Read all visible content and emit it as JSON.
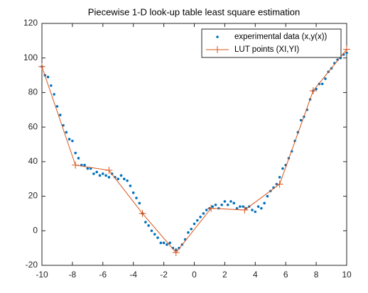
{
  "chart_data": {
    "type": "line",
    "title": "Piecewise 1-D look-up table least square estimation",
    "xlim": [
      -10,
      10
    ],
    "xticks": [
      -10,
      -8,
      -6,
      -4,
      -2,
      0,
      2,
      4,
      6,
      8,
      10
    ],
    "ylim": [
      -20,
      120
    ],
    "yticks": [
      -20,
      0,
      20,
      40,
      60,
      80,
      100,
      120
    ],
    "legend": "upper right",
    "series": [
      {
        "name": "experimental data (x,y(x))",
        "color": "#0072bd",
        "mode": "markers",
        "x": [
          -10,
          -9.8,
          -9.6,
          -9.4,
          -9.2,
          -9,
          -8.8,
          -8.6,
          -8.4,
          -8.2,
          -8,
          -7.8,
          -7.6,
          -7.4,
          -7.2,
          -7,
          -6.8,
          -6.6,
          -6.4,
          -6.2,
          -6,
          -5.8,
          -5.6,
          -5.4,
          -5.2,
          -5,
          -4.8,
          -4.6,
          -4.4,
          -4.2,
          -4,
          -3.8,
          -3.6,
          -3.4,
          -3.2,
          -3,
          -2.8,
          -2.6,
          -2.4,
          -2.2,
          -2,
          -1.8,
          -1.6,
          -1.4,
          -1.2,
          -1,
          -0.8,
          -0.6,
          -0.4,
          -0.2,
          0,
          0.2,
          0.4,
          0.6,
          0.8,
          1,
          1.2,
          1.4,
          1.6,
          1.8,
          2,
          2.2,
          2.4,
          2.6,
          2.8,
          3,
          3.2,
          3.4,
          3.6,
          3.8,
          4,
          4.2,
          4.4,
          4.6,
          4.8,
          5,
          5.2,
          5.4,
          5.6,
          5.8,
          6,
          6.2,
          6.4,
          6.6,
          6.8,
          7,
          7.2,
          7.4,
          7.6,
          7.8,
          8,
          8.2,
          8.4,
          8.6,
          8.8,
          9,
          9.2,
          9.4,
          9.6,
          9.8,
          10
        ],
        "values": [
          95,
          90,
          89,
          84,
          79,
          72,
          67,
          61,
          57,
          53,
          52,
          45,
          42,
          38,
          38,
          36,
          36,
          33,
          34,
          32,
          33,
          32,
          31,
          33,
          31,
          30,
          32,
          30,
          29,
          26,
          22,
          19,
          16,
          10,
          5,
          3,
          0,
          -2,
          -4,
          -7,
          -7,
          -8,
          -7,
          -10,
          -11,
          -10,
          -8,
          -5,
          -1,
          1,
          4,
          6,
          8,
          10,
          12,
          13,
          14,
          15,
          13,
          15,
          17,
          15,
          17,
          16,
          13,
          14,
          14,
          13,
          14,
          12,
          11,
          14,
          13,
          16,
          20,
          23,
          25,
          27,
          31,
          36,
          38,
          42,
          46,
          52,
          57,
          64,
          66,
          70,
          76,
          81,
          82,
          85,
          85,
          88,
          92,
          94,
          97,
          99,
          100,
          102,
          103
        ]
      },
      {
        "name": "LUT points (XI,YI)",
        "color": "#d95319",
        "mode": "lines+markers",
        "x": [
          -10,
          -7.8,
          -5.6,
          -3.4,
          -1.2,
          1.1,
          3.3,
          5.6,
          7.8,
          10
        ],
        "values": [
          95,
          38,
          35,
          10,
          -12.6,
          13,
          12,
          27,
          81,
          105
        ]
      }
    ]
  }
}
